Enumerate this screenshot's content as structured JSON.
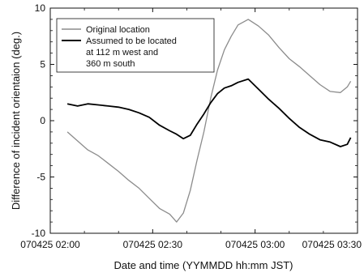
{
  "chart_data": {
    "type": "line",
    "title": "",
    "xlabel": "Date and time (YYMMDD hh:mm JST)",
    "ylabel": "Difference of incident orientaion (deg.)",
    "xlim": [
      "070425 02:00",
      "070425 03:30"
    ],
    "ylim": [
      -10,
      10
    ],
    "x_ticks": [
      "070425 02:00",
      "070425 02:30",
      "070425 03:00",
      "070425 03:30"
    ],
    "y_ticks": [
      "10",
      "5",
      "0",
      "-5",
      "-10"
    ],
    "grid": false,
    "legend_position": "top-left",
    "series": [
      {
        "name": "Original location",
        "color": "#8c8c8c",
        "points": [
          [
            "070425 02:05",
            -1.0
          ],
          [
            "070425 02:08",
            -1.8
          ],
          [
            "070425 02:11",
            -2.6
          ],
          [
            "070425 02:14",
            -3.1
          ],
          [
            "070425 02:17",
            -3.8
          ],
          [
            "070425 02:20",
            -4.5
          ],
          [
            "070425 02:23",
            -5.3
          ],
          [
            "070425 02:26",
            -6.0
          ],
          [
            "070425 02:29",
            -6.9
          ],
          [
            "070425 02:32",
            -7.8
          ],
          [
            "070425 02:35",
            -8.3
          ],
          [
            "070425 02:37",
            -9.0
          ],
          [
            "070425 02:39",
            -8.2
          ],
          [
            "070425 02:41",
            -6.2
          ],
          [
            "070425 02:43",
            -3.5
          ],
          [
            "070425 02:45",
            -1.0
          ],
          [
            "070425 02:47",
            2.0
          ],
          [
            "070425 02:49",
            4.5
          ],
          [
            "070425 02:51",
            6.3
          ],
          [
            "070425 02:53",
            7.5
          ],
          [
            "070425 02:55",
            8.5
          ],
          [
            "070425 02:58",
            9.0
          ],
          [
            "070425 03:01",
            8.4
          ],
          [
            "070425 03:04",
            7.6
          ],
          [
            "070425 03:07",
            6.5
          ],
          [
            "070425 03:10",
            5.5
          ],
          [
            "070425 03:13",
            4.8
          ],
          [
            "070425 03:16",
            4.0
          ],
          [
            "070425 03:19",
            3.2
          ],
          [
            "070425 03:22",
            2.6
          ],
          [
            "070425 03:25",
            2.5
          ],
          [
            "070425 03:27",
            3.0
          ],
          [
            "070425 03:28",
            3.5
          ]
        ]
      },
      {
        "name": "Assumed to be located at 112 m west and 360 m south",
        "color": "#000000",
        "points": [
          [
            "070425 02:05",
            1.5
          ],
          [
            "070425 02:08",
            1.3
          ],
          [
            "070425 02:11",
            1.5
          ],
          [
            "070425 02:14",
            1.4
          ],
          [
            "070425 02:17",
            1.3
          ],
          [
            "070425 02:20",
            1.2
          ],
          [
            "070425 02:23",
            1.0
          ],
          [
            "070425 02:26",
            0.7
          ],
          [
            "070425 02:29",
            0.3
          ],
          [
            "070425 02:32",
            -0.4
          ],
          [
            "070425 02:35",
            -0.9
          ],
          [
            "070425 02:37",
            -1.2
          ],
          [
            "070425 02:39",
            -1.6
          ],
          [
            "070425 02:41",
            -1.3
          ],
          [
            "070425 02:43",
            -0.3
          ],
          [
            "070425 02:45",
            0.6
          ],
          [
            "070425 02:47",
            1.6
          ],
          [
            "070425 02:49",
            2.4
          ],
          [
            "070425 02:51",
            2.9
          ],
          [
            "070425 02:53",
            3.1
          ],
          [
            "070425 02:55",
            3.4
          ],
          [
            "070425 02:58",
            3.7
          ],
          [
            "070425 03:01",
            2.8
          ],
          [
            "070425 03:04",
            1.9
          ],
          [
            "070425 03:07",
            1.1
          ],
          [
            "070425 03:10",
            0.2
          ],
          [
            "070425 03:13",
            -0.6
          ],
          [
            "070425 03:16",
            -1.2
          ],
          [
            "070425 03:19",
            -1.7
          ],
          [
            "070425 03:22",
            -1.9
          ],
          [
            "070425 03:25",
            -2.3
          ],
          [
            "070425 03:27",
            -2.1
          ],
          [
            "070425 03:28",
            -1.5
          ]
        ]
      }
    ],
    "legend_lines": [
      "Original location",
      "Assumed to be located",
      "at 112 m west and",
      "360 m south"
    ]
  }
}
